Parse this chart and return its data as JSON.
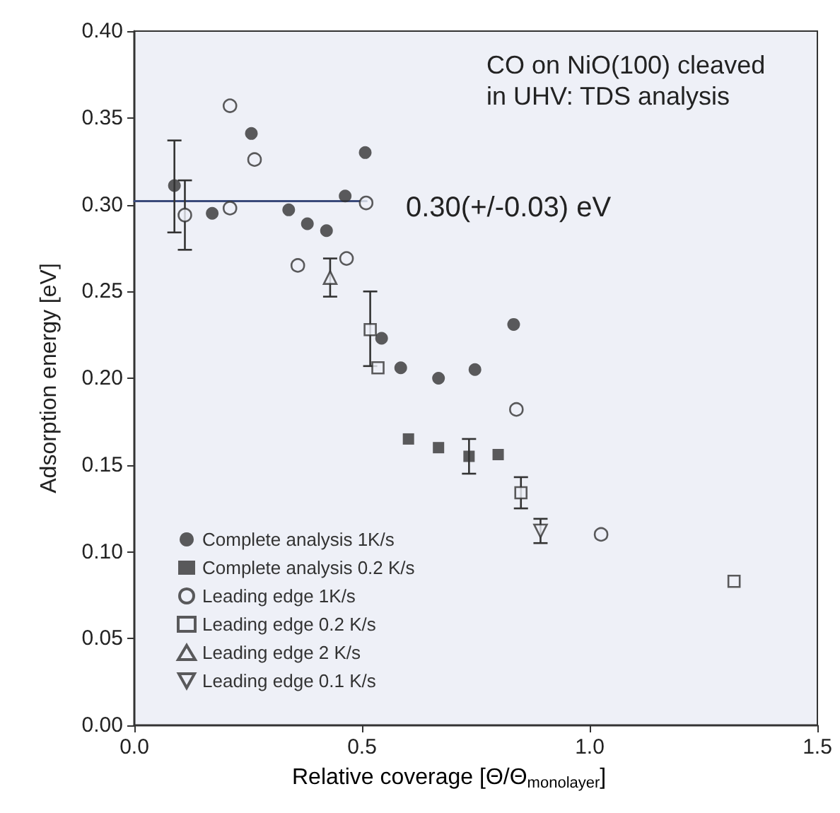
{
  "chart_data": {
    "type": "scatter",
    "title": "CO on NiO(100) cleaved in UHV: TDS analysis",
    "xlabel": "Relative coverage [Θ/Θ$_{monolayer}$]",
    "ylabel": "Adsorption energy [eV]",
    "xlim": [
      0,
      1.5
    ],
    "xticks": [
      {
        "value": 0,
        "label": "0.0"
      },
      {
        "value": 0.5,
        "label": "0.5"
      },
      {
        "value": 1,
        "label": "1.0"
      },
      {
        "value": 1.5,
        "label": "1.5"
      }
    ],
    "ylim": [
      0,
      0.4
    ],
    "yticks": [
      {
        "value": 0,
        "label": "0.00"
      },
      {
        "value": 0.05,
        "label": "0.05"
      },
      {
        "value": 0.1,
        "label": "0.10"
      },
      {
        "value": 0.15,
        "label": "0.15"
      },
      {
        "value": 0.2,
        "label": "0.20"
      },
      {
        "value": 0.25,
        "label": "0.25"
      },
      {
        "value": 0.3,
        "label": "0.30"
      },
      {
        "value": 0.35,
        "label": "0.35"
      },
      {
        "value": 0.4,
        "label": "0.40"
      }
    ],
    "grid": false,
    "legend": "bottom left",
    "annotations": [
      "0.30(+/-0.03) eV"
    ],
    "series": [
      {
        "name": "Complete analysis 1K/s",
        "color": "#333333",
        "marker": "circle",
        "x": [
          0.088,
          0.171,
          0.257,
          0.339,
          0.38,
          0.422,
          0.463,
          0.507,
          0.543,
          0.585,
          0.668,
          0.748,
          0.833
        ],
        "values": [
          0.311,
          0.295,
          0.341,
          0.297,
          0.289,
          0.285,
          0.305,
          0.33,
          0.223,
          0.206,
          0.2,
          0.205,
          0.231
        ],
        "errors": [
          [
            0.284,
            0.337
          ],
          null,
          null,
          null,
          null,
          null,
          null,
          null,
          null,
          null,
          null,
          null,
          null
        ]
      },
      {
        "name": "Complete analysis 0.2 K/s",
        "color": "#333333",
        "marker": "square",
        "x": [
          0.602,
          0.668,
          0.735,
          0.799
        ],
        "values": [
          0.165,
          0.16,
          0.155,
          0.156
        ],
        "errors": [
          null,
          null,
          0.01,
          null
        ]
      },
      {
        "name": "Leading edge 1K/s",
        "color": "#333333",
        "marker": "circle-open",
        "x": [
          0.111,
          0.21,
          0.21,
          0.264,
          0.359,
          0.466,
          0.509,
          0.839,
          1.025
        ],
        "values": [
          0.294,
          0.357,
          0.298,
          0.326,
          0.265,
          0.269,
          0.301,
          0.182,
          0.11
        ],
        "errors": [
          0.02,
          null,
          null,
          null,
          null,
          null,
          null,
          null,
          null
        ]
      },
      {
        "name": "Leading edge 0.2 K/s",
        "color": "#333333",
        "marker": "square-open",
        "x": [
          0.518,
          0.535,
          0.849,
          1.317
        ],
        "values": [
          0.228,
          0.206,
          0.134,
          0.083
        ],
        "errors": [
          [
            0.207,
            0.25
          ],
          null,
          0.009,
          null
        ]
      },
      {
        "name": "Leading edge 2 K/s",
        "color": "#333333",
        "marker": "triangle-open",
        "x": [
          0.43
        ],
        "values": [
          0.258
        ],
        "errors": [
          0.011
        ]
      },
      {
        "name": "Leading edge 0.1 K/s",
        "color": "#333333",
        "marker": "triangle-down-open",
        "x": [
          0.892
        ],
        "values": [
          0.112
        ],
        "errors": [
          0.007
        ]
      },
      {
        "type": "line",
        "color": "#3a4a7a",
        "line_style": "solid",
        "marker": "none",
        "x": [
          0,
          0.51
        ],
        "values": [
          0.302,
          0.302
        ]
      }
    ]
  }
}
